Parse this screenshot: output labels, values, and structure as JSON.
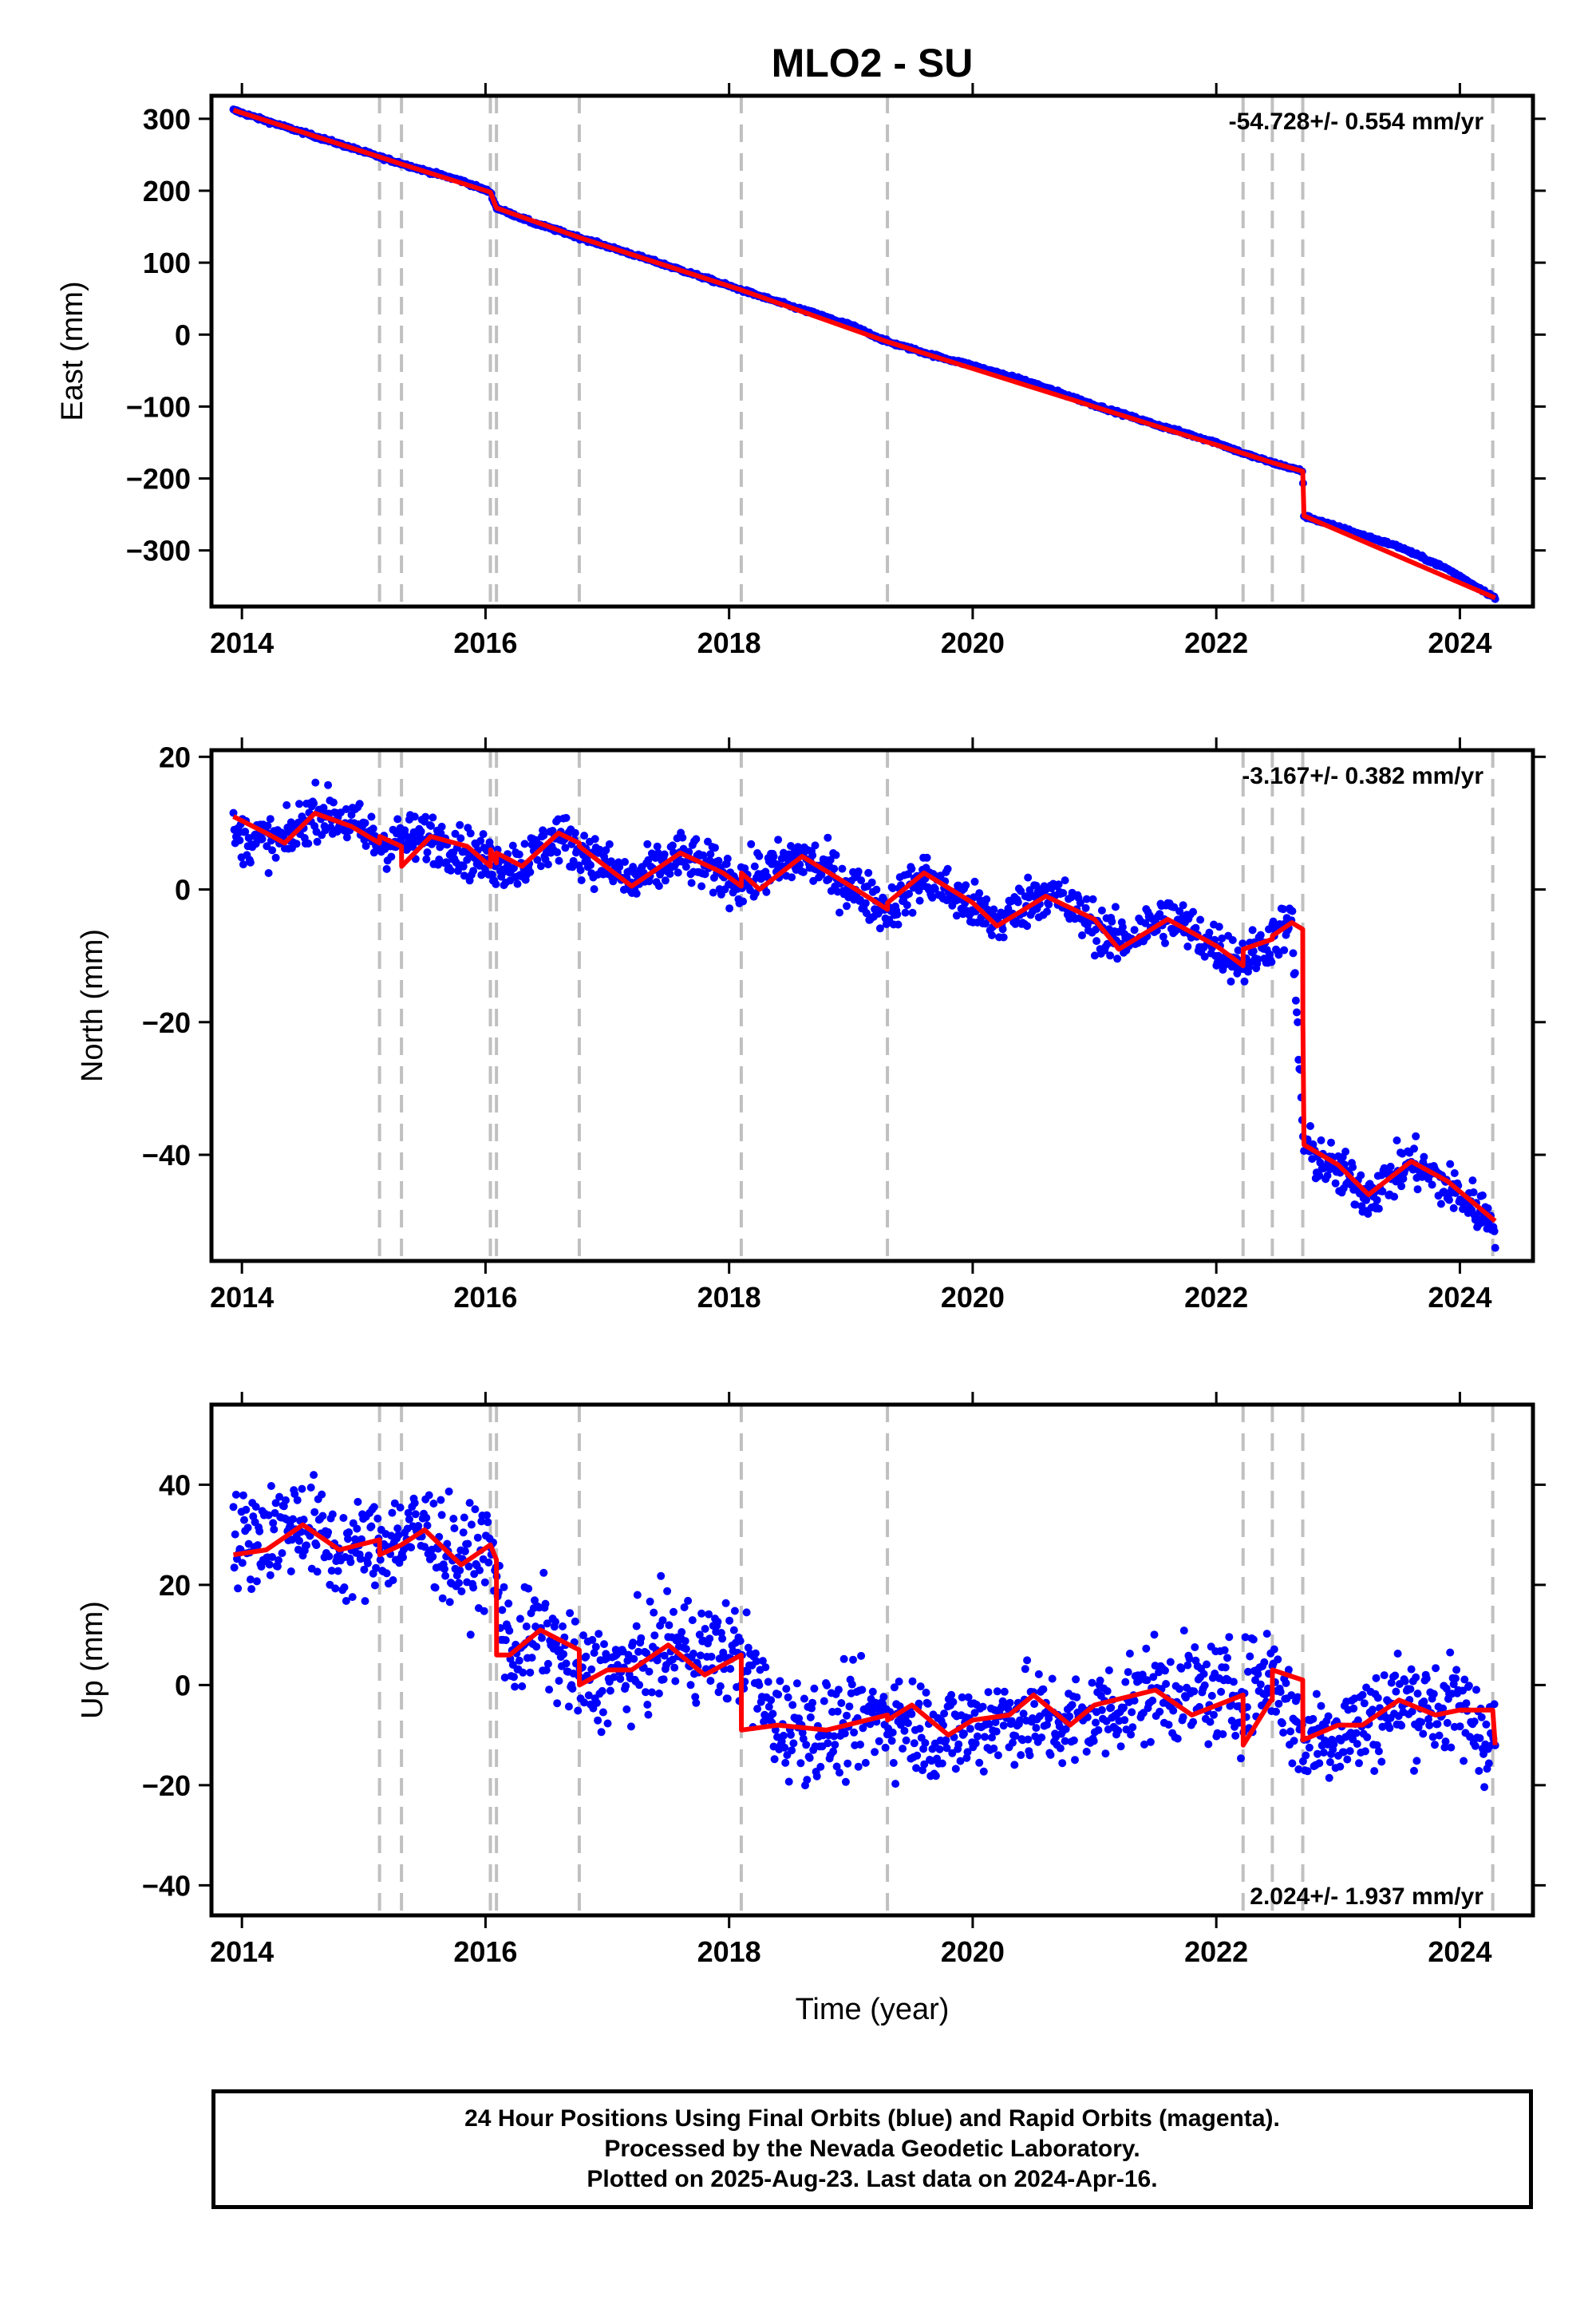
{
  "figure": {
    "title": "MLO2 - SU",
    "footer": [
      "24 Hour Positions Using Final Orbits (blue) and Rapid Orbits (magenta).",
      "Processed by the Nevada Geodetic Laboratory.",
      "Plotted on 2025-Aug-23. Last data on 2024-Apr-16."
    ],
    "colors": {
      "points": "#0000ff",
      "model": "#ff0000",
      "steps": "#c0c0c0",
      "frame": "#000000"
    }
  },
  "chart_data": [
    {
      "type": "scatter",
      "ylabel": "East (mm)",
      "xlabel": "",
      "xlim": [
        2013.75,
        2024.6
      ],
      "ylim": [
        -378,
        332
      ],
      "xticks": [
        2014,
        2016,
        2018,
        2020,
        2022,
        2024
      ],
      "yticks": [
        -300,
        -200,
        -100,
        0,
        100,
        200,
        300
      ],
      "rate_label": "-54.728+/- 0.554 mm/yr",
      "rate_position": "top-right",
      "grid": false,
      "step_epochs": [
        2015.13,
        2015.31,
        2016.04,
        2016.09,
        2016.77,
        2018.1,
        2019.3,
        2022.22,
        2022.46,
        2022.71,
        2024.27
      ],
      "model": {
        "name": "",
        "x": [
          2013.93,
          2015.13,
          2015.31,
          2016.04,
          2016.09,
          2016.77,
          2018.1,
          2019.3,
          2022.22,
          2022.46,
          2022.71,
          2022.72,
          2024.29
        ],
        "y": [
          312,
          247,
          237,
          198,
          176,
          135,
          62,
          -10,
          -165,
          -178,
          -190,
          -252,
          -366
        ]
      },
      "series": [
        {
          "name": "",
          "x": [
            2013.93,
            2014.2,
            2014.5,
            2014.8,
            2015.13,
            2015.5,
            2015.8,
            2016.04,
            2016.09,
            2016.4,
            2016.77,
            2017.2,
            2017.6,
            2018.1,
            2018.5,
            2019.0,
            2019.3,
            2019.7,
            2020.0,
            2020.5,
            2021.0,
            2021.5,
            2022.0,
            2022.22,
            2022.46,
            2022.71,
            2022.72,
            2023.1,
            2023.5,
            2023.9,
            2024.29
          ],
          "y": [
            312,
            297,
            281,
            265,
            247,
            228,
            214,
            198,
            176,
            155,
            135,
            112,
            90,
            62,
            40,
            13,
            -10,
            -30,
            -43,
            -68,
            -98,
            -125,
            -150,
            -165,
            -178,
            -190,
            -252,
            -273,
            -295,
            -326,
            -366
          ]
        }
      ]
    },
    {
      "type": "scatter",
      "ylabel": "North (mm)",
      "xlabel": "",
      "xlim": [
        2013.75,
        2024.6
      ],
      "ylim": [
        -56,
        21
      ],
      "xticks": [
        2014,
        2016,
        2018,
        2020,
        2022,
        2024
      ],
      "yticks": [
        -40,
        -20,
        0,
        20
      ],
      "rate_label": "-3.167+/- 0.382 mm/yr",
      "rate_position": "top-right",
      "grid": false,
      "step_epochs": [
        2015.13,
        2015.31,
        2016.04,
        2016.09,
        2016.77,
        2018.1,
        2019.3,
        2022.22,
        2022.46,
        2022.71,
        2024.27
      ],
      "model": {
        "name": "",
        "x": [
          2013.93,
          2014.2,
          2014.35,
          2014.6,
          2014.9,
          2015.13,
          2015.131,
          2015.31,
          2015.311,
          2015.55,
          2015.85,
          2016.04,
          2016.041,
          2016.09,
          2016.091,
          2016.3,
          2016.6,
          2016.77,
          2016.771,
          2017.2,
          2017.6,
          2017.95,
          2018.1,
          2018.101,
          2018.25,
          2018.6,
          2019.0,
          2019.3,
          2019.301,
          2019.6,
          2020.0,
          2020.2,
          2020.6,
          2021.0,
          2021.2,
          2021.6,
          2022.0,
          2022.22,
          2022.221,
          2022.46,
          2022.461,
          2022.62,
          2022.71,
          2022.711,
          2022.72,
          2023.0,
          2023.25,
          2023.6,
          2023.9,
          2024.29
        ],
        "y": [
          11,
          8.5,
          7,
          11.5,
          9.5,
          7,
          8,
          6.5,
          3.5,
          8,
          6.5,
          3.5,
          6,
          4,
          5.5,
          3.5,
          8.5,
          7,
          6.5,
          0.5,
          5.5,
          2.5,
          0.5,
          2.5,
          0,
          5,
          0.5,
          -3,
          -2,
          2.5,
          -2,
          -5.5,
          -1,
          -4.5,
          -9,
          -4.5,
          -8.5,
          -11.5,
          -9,
          -7.5,
          -7,
          -5,
          -6,
          -20,
          -38.5,
          -41.5,
          -46,
          -41,
          -44,
          -50
        ]
      },
      "series": [
        {
          "name": "",
          "x": [
            2013.93,
            2014.35,
            2014.6,
            2014.9,
            2015.13,
            2015.55,
            2016.04,
            2016.3,
            2016.6,
            2017.2,
            2017.6,
            2018.1,
            2018.6,
            2019.3,
            2019.6,
            2020.2,
            2020.6,
            2021.2,
            2021.6,
            2022.22,
            2022.62,
            2022.72,
            2023.25,
            2023.6,
            2024.29
          ],
          "y": [
            8,
            7,
            12,
            10,
            7,
            8,
            4,
            4,
            8,
            1,
            5,
            1,
            5,
            -3,
            2,
            -5,
            0,
            -8,
            -4,
            -11,
            -5,
            -39,
            -46,
            -41,
            -50
          ]
        }
      ]
    },
    {
      "type": "scatter",
      "ylabel": "Up (mm)",
      "xlabel": "Time (year)",
      "xlim": [
        2013.75,
        2024.6
      ],
      "ylim": [
        -46,
        56
      ],
      "xticks": [
        2014,
        2016,
        2018,
        2020,
        2022,
        2024
      ],
      "yticks": [
        -40,
        -20,
        0,
        20,
        40
      ],
      "rate_label": "2.024+/- 1.937 mm/yr",
      "rate_position": "bottom-right",
      "grid": false,
      "step_epochs": [
        2015.13,
        2015.31,
        2016.04,
        2016.09,
        2016.77,
        2018.1,
        2019.3,
        2022.22,
        2022.46,
        2022.71,
        2024.27
      ],
      "model": {
        "name": "",
        "x": [
          2013.93,
          2014.2,
          2014.5,
          2014.8,
          2015.13,
          2015.131,
          2015.31,
          2015.5,
          2015.8,
          2016.04,
          2016.09,
          2016.091,
          2016.2,
          2016.45,
          2016.77,
          2016.771,
          2017.0,
          2017.2,
          2017.5,
          2017.8,
          2018.1,
          2018.101,
          2018.4,
          2018.8,
          2019.3,
          2019.301,
          2019.5,
          2019.8,
          2020.0,
          2020.3,
          2020.5,
          2020.8,
          2021.0,
          2021.5,
          2021.8,
          2022.22,
          2022.221,
          2022.45,
          2022.46,
          2022.461,
          2022.71,
          2022.711,
          2023.0,
          2023.2,
          2023.5,
          2023.8,
          2024.0,
          2024.27,
          2024.29
        ],
        "y": [
          26,
          27,
          32,
          27,
          29,
          26,
          28,
          31,
          24,
          28,
          25,
          6,
          6,
          11,
          7,
          0,
          3,
          3,
          8,
          2,
          6,
          -9,
          -8,
          -9,
          -6,
          -7,
          -4,
          -10,
          -7,
          -6,
          -2,
          -8,
          -4,
          -1,
          -6,
          -2,
          -12,
          -3,
          -3,
          3,
          1,
          -11,
          -8,
          -8,
          -3,
          -6,
          -5,
          -5,
          -12
        ]
      },
      "series": [
        {
          "name": "",
          "x": [
            2013.93,
            2014.5,
            2014.8,
            2015.13,
            2015.5,
            2015.8,
            2016.04,
            2016.2,
            2016.45,
            2016.77,
            2017.2,
            2017.5,
            2018.1,
            2018.4,
            2018.8,
            2019.3,
            2019.8,
            2020.3,
            2020.8,
            2021.5,
            2022.22,
            2022.46,
            2022.71,
            2023.2,
            2023.5,
            2024.0,
            2024.29
          ],
          "y": [
            28,
            33,
            26,
            28,
            31,
            24,
            27,
            6,
            11,
            1,
            3,
            8,
            6,
            -8,
            -9,
            -6,
            -10,
            -6,
            -8,
            -1,
            -2,
            3,
            -11,
            -8,
            -3,
            -5,
            -11
          ]
        }
      ]
    }
  ]
}
